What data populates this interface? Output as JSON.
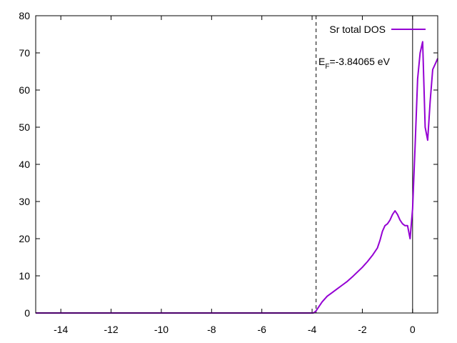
{
  "chart_data": {
    "type": "line",
    "title": "",
    "xlabel": "",
    "ylabel": "",
    "xlim": [
      -15,
      1
    ],
    "ylim": [
      0,
      80
    ],
    "x_ticks": [
      -14,
      -12,
      -10,
      -8,
      -6,
      -4,
      -2,
      0
    ],
    "y_ticks": [
      0,
      10,
      20,
      30,
      40,
      50,
      60,
      70,
      80
    ],
    "legend_position": "top-right",
    "fermi_level": -3.84065,
    "fermi_label_base": "E",
    "fermi_label_sub": "F",
    "fermi_label_rest": "=-3.84065 eV",
    "zero_line_x": 0,
    "series": [
      {
        "name": "Sr total DOS",
        "color": "#9400d3",
        "points": [
          [
            -15,
            0
          ],
          [
            -4.2,
            0
          ],
          [
            -3.95,
            0
          ],
          [
            -3.85,
            0.5
          ],
          [
            -3.75,
            1.5
          ],
          [
            -3.6,
            3
          ],
          [
            -3.4,
            4.5
          ],
          [
            -3.2,
            5.5
          ],
          [
            -3.0,
            6.5
          ],
          [
            -2.8,
            7.5
          ],
          [
            -2.6,
            8.5
          ],
          [
            -2.4,
            9.7
          ],
          [
            -2.2,
            11
          ],
          [
            -2.0,
            12.3
          ],
          [
            -1.8,
            13.8
          ],
          [
            -1.6,
            15.5
          ],
          [
            -1.4,
            17.5
          ],
          [
            -1.3,
            19.5
          ],
          [
            -1.2,
            22
          ],
          [
            -1.1,
            23.5
          ],
          [
            -1.0,
            24
          ],
          [
            -0.9,
            25
          ],
          [
            -0.8,
            26.5
          ],
          [
            -0.7,
            27.5
          ],
          [
            -0.6,
            26.5
          ],
          [
            -0.5,
            25
          ],
          [
            -0.4,
            24
          ],
          [
            -0.3,
            23.5
          ],
          [
            -0.2,
            23.5
          ],
          [
            -0.1,
            20
          ],
          [
            0.0,
            28
          ],
          [
            0.1,
            45
          ],
          [
            0.2,
            63
          ],
          [
            0.3,
            70
          ],
          [
            0.4,
            73
          ],
          [
            0.5,
            50
          ],
          [
            0.6,
            46.5
          ],
          [
            0.7,
            57
          ],
          [
            0.8,
            65.5
          ],
          [
            0.9,
            67
          ],
          [
            1.0,
            68.5
          ]
        ]
      }
    ]
  }
}
